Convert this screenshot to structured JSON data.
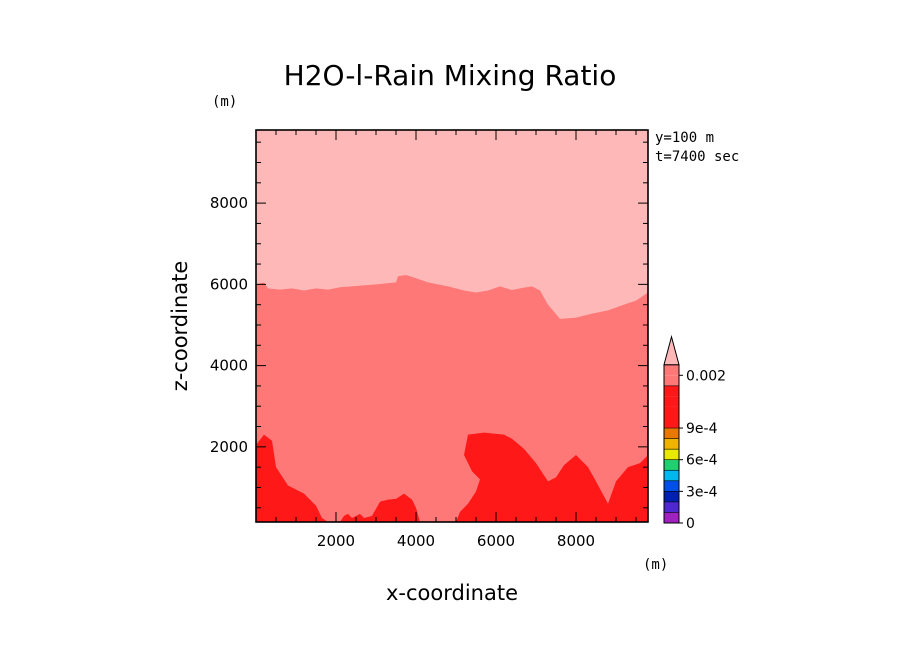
{
  "chart_data": {
    "type": "heatmap",
    "title": "H2O-l-Rain Mixing Ratio",
    "xlabel": "x-coordinate",
    "ylabel": "z-coordinate",
    "x_unit": "(m)",
    "y_unit": "(m)",
    "info_lines": [
      "y=100 m",
      "t=7400 sec"
    ],
    "xlim": [
      0,
      9800
    ],
    "ylim": [
      150,
      9800
    ],
    "x_ticks": [
      2000,
      4000,
      6000,
      8000
    ],
    "y_ticks": [
      2000,
      4000,
      6000,
      8000
    ],
    "x_tick_labels": [
      "2000",
      "4000",
      "6000",
      "8000"
    ],
    "y_tick_labels": [
      "2000",
      "4000",
      "6000",
      "8000"
    ],
    "colorbar": {
      "labels": [
        {
          "text": "0.002",
          "level": 14
        },
        {
          "text": "9e-4",
          "level": 9
        },
        {
          "text": "6e-4",
          "level": 6
        },
        {
          "text": "3e-4",
          "level": 3
        },
        {
          "text": "0",
          "level": 0
        }
      ],
      "colors": [
        "#a020c0",
        "#5028d0",
        "#0020b0",
        "#0050e8",
        "#00b8f0",
        "#20d070",
        "#e8e800",
        "#f0b400",
        "#e87800",
        "#ff1818",
        "#ff1818",
        "#ff1818",
        "#ff1818",
        "#ff7878",
        "#ff7878",
        "#ffb8b8"
      ]
    },
    "regions": [
      {
        "name": "upper",
        "color": "#ffb8b8"
      },
      {
        "name": "middle",
        "color": "#ff7878",
        "top_boundary": [
          [
            0,
            6000
          ],
          [
            200,
            6050
          ],
          [
            300,
            5900
          ],
          [
            600,
            5870
          ],
          [
            900,
            5900
          ],
          [
            1200,
            5850
          ],
          [
            1500,
            5900
          ],
          [
            1800,
            5870
          ],
          [
            2100,
            5930
          ],
          [
            2500,
            5960
          ],
          [
            3000,
            6000
          ],
          [
            3500,
            6050
          ],
          [
            3550,
            6200
          ],
          [
            3750,
            6230
          ],
          [
            4000,
            6150
          ],
          [
            4300,
            6050
          ],
          [
            4800,
            5950
          ],
          [
            5200,
            5850
          ],
          [
            5500,
            5800
          ],
          [
            5800,
            5850
          ],
          [
            6100,
            5950
          ],
          [
            6400,
            5860
          ],
          [
            6700,
            5920
          ],
          [
            6900,
            5950
          ],
          [
            7100,
            5850
          ],
          [
            7300,
            5500
          ],
          [
            7600,
            5150
          ],
          [
            8000,
            5180
          ],
          [
            8400,
            5280
          ],
          [
            8800,
            5360
          ],
          [
            9200,
            5500
          ],
          [
            9500,
            5600
          ],
          [
            9800,
            5800
          ]
        ]
      },
      {
        "name": "bottom-left",
        "color": "#ff1818",
        "outline": [
          [
            0,
            2050
          ],
          [
            200,
            2300
          ],
          [
            400,
            2150
          ],
          [
            500,
            1500
          ],
          [
            800,
            1050
          ],
          [
            1200,
            850
          ],
          [
            1500,
            550
          ],
          [
            1650,
            250
          ],
          [
            1800,
            150
          ],
          [
            0,
            150
          ]
        ]
      },
      {
        "name": "bottom-middle",
        "color": "#ff1818",
        "outline": [
          [
            2100,
            150
          ],
          [
            2200,
            300
          ],
          [
            2300,
            350
          ],
          [
            2400,
            250
          ],
          [
            2600,
            350
          ],
          [
            2700,
            250
          ],
          [
            2900,
            300
          ],
          [
            3100,
            650
          ],
          [
            3300,
            700
          ],
          [
            3500,
            720
          ],
          [
            3700,
            850
          ],
          [
            3900,
            700
          ],
          [
            4000,
            500
          ],
          [
            4100,
            150
          ]
        ]
      },
      {
        "name": "bottom-right",
        "color": "#ff1818",
        "outline": [
          [
            5000,
            150
          ],
          [
            5100,
            400
          ],
          [
            5300,
            600
          ],
          [
            5500,
            900
          ],
          [
            5600,
            1200
          ],
          [
            5400,
            1400
          ],
          [
            5200,
            1800
          ],
          [
            5300,
            2300
          ],
          [
            5700,
            2350
          ],
          [
            6200,
            2300
          ],
          [
            6400,
            2200
          ],
          [
            6700,
            1950
          ],
          [
            7000,
            1600
          ],
          [
            7300,
            1150
          ],
          [
            7500,
            1250
          ],
          [
            7700,
            1550
          ],
          [
            8000,
            1800
          ],
          [
            8300,
            1500
          ],
          [
            8500,
            1150
          ],
          [
            8800,
            600
          ],
          [
            9000,
            1150
          ],
          [
            9300,
            1500
          ],
          [
            9600,
            1600
          ],
          [
            9800,
            1800
          ],
          [
            9800,
            150
          ]
        ]
      }
    ]
  }
}
